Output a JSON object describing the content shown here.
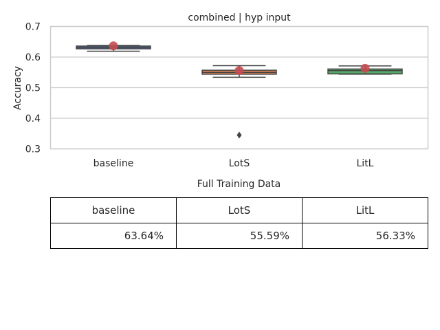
{
  "chart_data": {
    "type": "box",
    "title": "combined | hyp input",
    "xlabel": "",
    "ylabel": "Accuracy",
    "ylim": [
      0.3,
      0.7
    ],
    "yticks": [
      "0.3",
      "0.4",
      "0.5",
      "0.6",
      "0.7"
    ],
    "grid": true,
    "categories": [
      "baseline",
      "LotS",
      "LitL"
    ],
    "boxes": [
      {
        "name": "baseline",
        "q1": 0.627,
        "median": 0.631,
        "q3": 0.636,
        "whisker_low": 0.619,
        "whisker_high": 0.638,
        "mean": 0.6364,
        "outliers": [],
        "color": "#4c72b0"
      },
      {
        "name": "LotS",
        "q1": 0.544,
        "median": 0.55,
        "q3": 0.557,
        "whisker_low": 0.534,
        "whisker_high": 0.572,
        "mean": 0.5559,
        "outliers": [
          0.345
        ],
        "color": "#dd8452"
      },
      {
        "name": "LitL",
        "q1": 0.545,
        "median": 0.556,
        "q3": 0.561,
        "whisker_low": 0.544,
        "whisker_high": 0.571,
        "mean": 0.5633,
        "outliers": [],
        "color": "#55a868"
      }
    ],
    "mean_marker_color": "#c44e52"
  },
  "table": {
    "caption": "Full Training Data",
    "headers": [
      "baseline",
      "LotS",
      "LitL"
    ],
    "values": [
      "63.64%",
      "55.59%",
      "56.33%"
    ]
  }
}
